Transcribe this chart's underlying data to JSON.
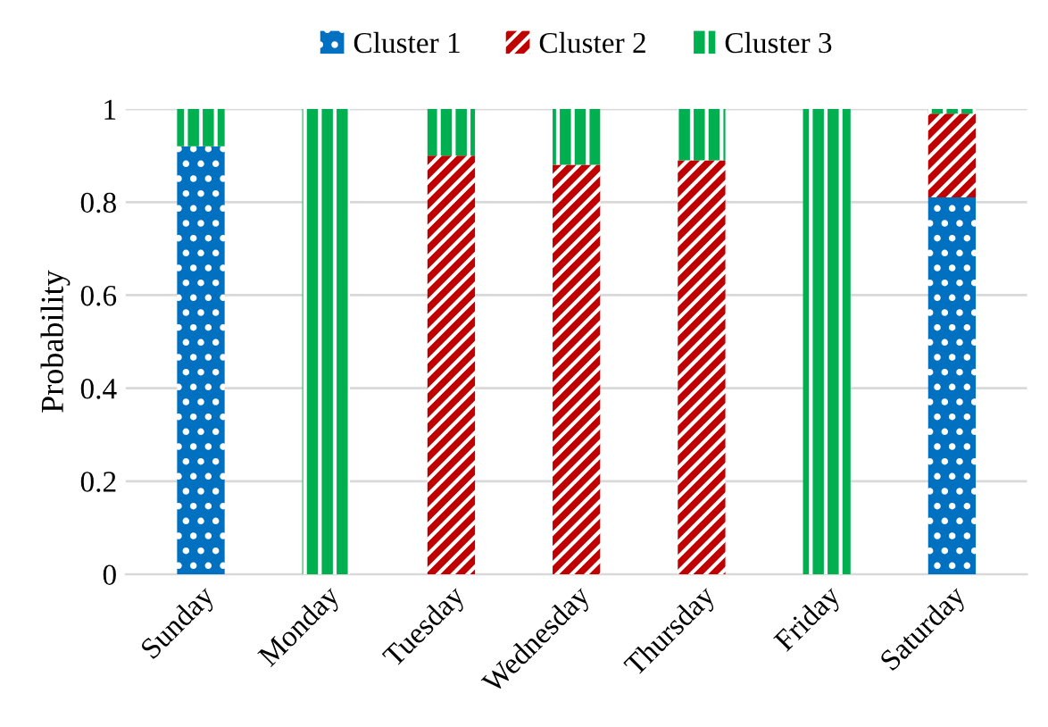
{
  "chart_data": {
    "type": "bar",
    "stacked": true,
    "ylabel": "Probability",
    "categories": [
      "Sunday",
      "Monday",
      "Tuesday",
      "Wednesday",
      "Thursday",
      "Friday",
      "Saturday"
    ],
    "series": [
      {
        "name": "Cluster 1",
        "color": "#0070c0",
        "values": [
          0.92,
          0,
          0,
          0,
          0,
          0,
          0.81
        ]
      },
      {
        "name": "Cluster 2",
        "color": "#c00000",
        "values": [
          0,
          0,
          0.9,
          0.88,
          0.89,
          0,
          0.18
        ]
      },
      {
        "name": "Cluster 3",
        "color": "#00b050",
        "values": [
          0.08,
          1,
          0.1,
          0.12,
          0.11,
          1,
          0.01
        ]
      }
    ],
    "ylim": [
      0,
      1
    ],
    "yticks": [
      0,
      {
        "value": 0.2,
        "label": "0.2"
      },
      {
        "value": 0.4,
        "label": "0.4"
      },
      {
        "value": 0.6,
        "label": "0.6"
      },
      {
        "value": 0.8,
        "label": "0.8"
      },
      1
    ],
    "grid": "y",
    "legend": "top"
  }
}
